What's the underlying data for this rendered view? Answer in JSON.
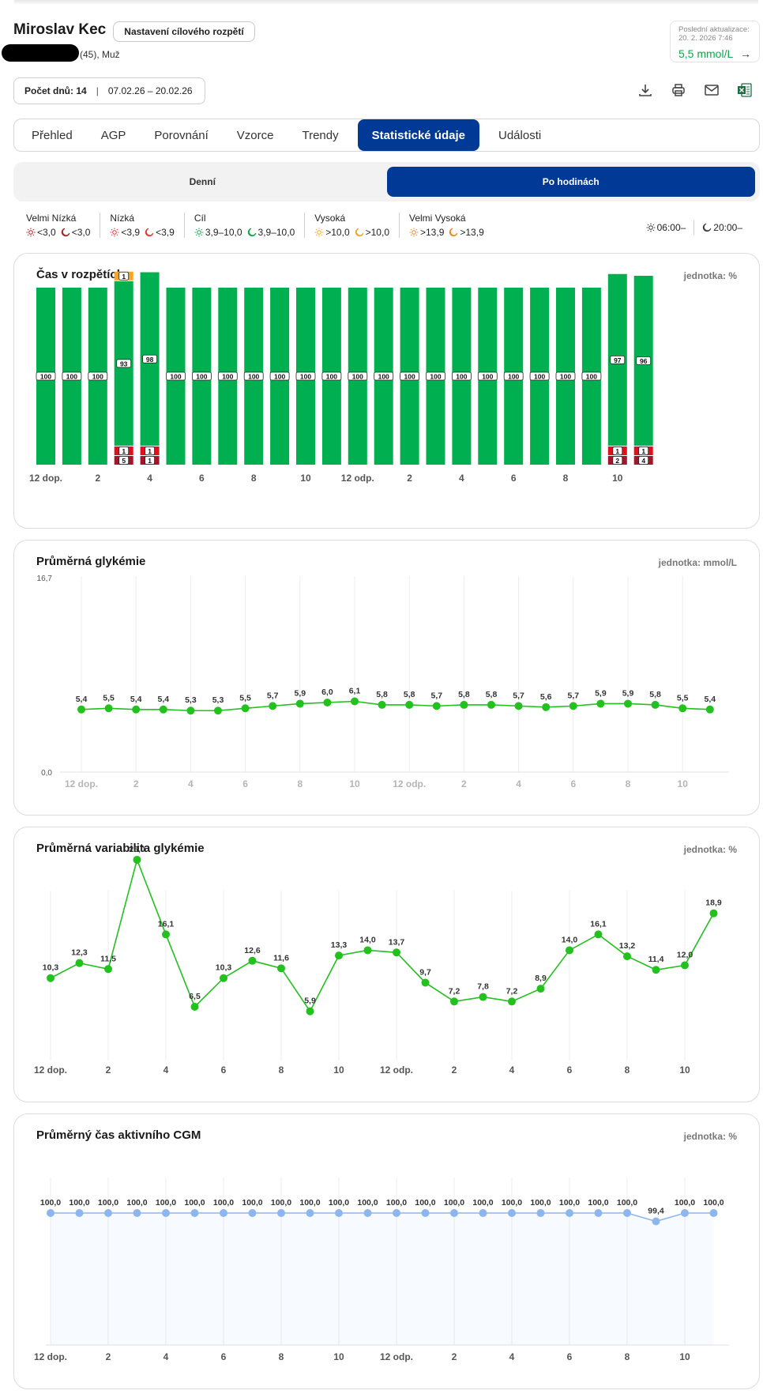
{
  "patient": {
    "name": "Miroslav Kec",
    "details": "(45), Muž",
    "target_button": "Nastavení cílového rozpětí"
  },
  "update": {
    "label": "Poslední aktualizace:",
    "date": "20. 2. 2026 7:46",
    "value": "5,5 mmol/L",
    "arrow": "→"
  },
  "period": {
    "days_label": "Počet dnů: 14",
    "range": "07.02.26 – 20.02.26"
  },
  "toolbar": {
    "icons": [
      "download-icon",
      "print-icon",
      "email-icon",
      "excel-icon"
    ]
  },
  "tabs": [
    "Přehled",
    "AGP",
    "Porovnání",
    "Vzorce",
    "Trendy",
    "Statistické údaje",
    "Události"
  ],
  "active_tab": "Statistické údaje",
  "segments": [
    "Denní",
    "Po hodinách"
  ],
  "active_segment": "Po hodinách",
  "legend": [
    {
      "title": "Velmi Nízká",
      "day": "<3,0",
      "night": "<3,0",
      "color": "#b71c1c"
    },
    {
      "title": "Nízká",
      "day": "<3,9",
      "night": "<3,9",
      "color": "#e53935"
    },
    {
      "title": "Cíl",
      "day": "3,9–10,0",
      "night": "3,9–10,0",
      "color": "#13a548"
    },
    {
      "title": "Vysoká",
      "day": ">10,0",
      "night": ">10,0",
      "color": "#f5a623"
    },
    {
      "title": "Velmi Vysoká",
      "day": ">13,9",
      "night": ">13,9",
      "color": "#e8892b"
    }
  ],
  "times": {
    "day": "06:00–",
    "night": "20:00–"
  },
  "x_labels": [
    "12 dop.",
    "2",
    "4",
    "6",
    "8",
    "10",
    "12 odp.",
    "2",
    "4",
    "6",
    "8",
    "10"
  ],
  "cards": {
    "tir": {
      "title": "Čas v rozpětích",
      "unit": "jednotka: %"
    },
    "avg": {
      "title": "Průměrná glykémie",
      "unit": "jednotka: mmol/L"
    },
    "cv": {
      "title": "Průměrná variabilita glykémie",
      "unit": "jednotka: %"
    },
    "cgm": {
      "title": "Průměrný čas aktivního CGM",
      "unit": "jednotka: %"
    }
  },
  "chart_data": [
    {
      "type": "bar",
      "title": "Čas v rozpětích",
      "unit": "%",
      "categories": [
        0,
        1,
        2,
        3,
        4,
        5,
        6,
        7,
        8,
        9,
        10,
        11,
        12,
        13,
        14,
        15,
        16,
        17,
        18,
        19,
        20,
        21,
        22,
        23
      ],
      "series": [
        {
          "name": "Velmi Nízká",
          "color": "#a3162a",
          "values": [
            0,
            0,
            0,
            5,
            1,
            0,
            0,
            0,
            0,
            0,
            0,
            0,
            0,
            0,
            0,
            0,
            0,
            0,
            0,
            0,
            0,
            0,
            2,
            4
          ]
        },
        {
          "name": "Nízká",
          "color": "#e0101e",
          "values": [
            0,
            0,
            0,
            1,
            1,
            0,
            0,
            0,
            0,
            0,
            0,
            0,
            0,
            0,
            0,
            0,
            0,
            0,
            0,
            0,
            0,
            0,
            1,
            1
          ]
        },
        {
          "name": "Cíl",
          "color": "#00b050",
          "values": [
            100,
            100,
            100,
            93,
            98,
            100,
            100,
            100,
            100,
            100,
            100,
            100,
            100,
            100,
            100,
            100,
            100,
            100,
            100,
            100,
            100,
            100,
            97,
            96
          ]
        },
        {
          "name": "Vysoká",
          "color": "#f5a623",
          "values": [
            0,
            0,
            0,
            1,
            0,
            0,
            0,
            0,
            0,
            0,
            0,
            0,
            0,
            0,
            0,
            0,
            0,
            0,
            0,
            0,
            0,
            0,
            0,
            0
          ]
        }
      ]
    },
    {
      "type": "line",
      "title": "Průměrná glykémie",
      "unit": "mmol/L",
      "ylim": [
        0.0,
        16.7
      ],
      "ytick_labels": [
        "0,0",
        "16,7"
      ],
      "values": [
        5.4,
        5.5,
        5.4,
        5.4,
        5.3,
        5.3,
        5.5,
        5.7,
        5.9,
        6.0,
        6.1,
        5.8,
        5.8,
        5.7,
        5.8,
        5.8,
        5.7,
        5.6,
        5.7,
        5.9,
        5.9,
        5.8,
        5.5,
        5.4
      ],
      "labels": [
        "5,4",
        "5,5",
        "5,4",
        "5,4",
        "5,3",
        "5,3",
        "5,5",
        "5,7",
        "5,9",
        "6,0",
        "6,1",
        "5,8",
        "5,8",
        "5,7",
        "5,8",
        "5,8",
        "5,7",
        "5,6",
        "5,7",
        "5,9",
        "5,9",
        "5,8",
        "5,5",
        "5,4"
      ]
    },
    {
      "type": "line",
      "title": "Průměrná variabilita glykémie",
      "unit": "%",
      "values": [
        10.3,
        12.3,
        11.5,
        26.0,
        16.1,
        6.5,
        10.3,
        12.6,
        11.6,
        5.9,
        13.3,
        14.0,
        13.7,
        9.7,
        7.2,
        7.8,
        7.2,
        8.9,
        14.0,
        16.1,
        13.2,
        11.4,
        12.0,
        18.9
      ],
      "labels": [
        "10,3",
        "12,3",
        "11,5",
        "26,0",
        "16,1",
        "6,5",
        "10,3",
        "12,6",
        "11,6",
        "5,9",
        "13,3",
        "14,0",
        "13,7",
        "9,7",
        "7,2",
        "7,8",
        "7,2",
        "8,9",
        "14,0",
        "16,1",
        "13,2",
        "11,4",
        "12,0",
        "18,9"
      ]
    },
    {
      "type": "area",
      "title": "Průměrný čas aktivního CGM",
      "unit": "%",
      "values": [
        100,
        100,
        100,
        100,
        100,
        100,
        100,
        100,
        100,
        100,
        100,
        100,
        100,
        100,
        100,
        100,
        100,
        100,
        100,
        100,
        100,
        99.4,
        100,
        100
      ],
      "labels": [
        "100,0",
        "100,0",
        "100,0",
        "100,0",
        "100,0",
        "100,0",
        "100,0",
        "100,0",
        "100,0",
        "100,0",
        "100,0",
        "100,0",
        "100,0",
        "100,0",
        "100,0",
        "100,0",
        "100,0",
        "100,0",
        "100,0",
        "100,0",
        "100,0",
        "99,4",
        "100,0",
        "100,0"
      ]
    }
  ]
}
